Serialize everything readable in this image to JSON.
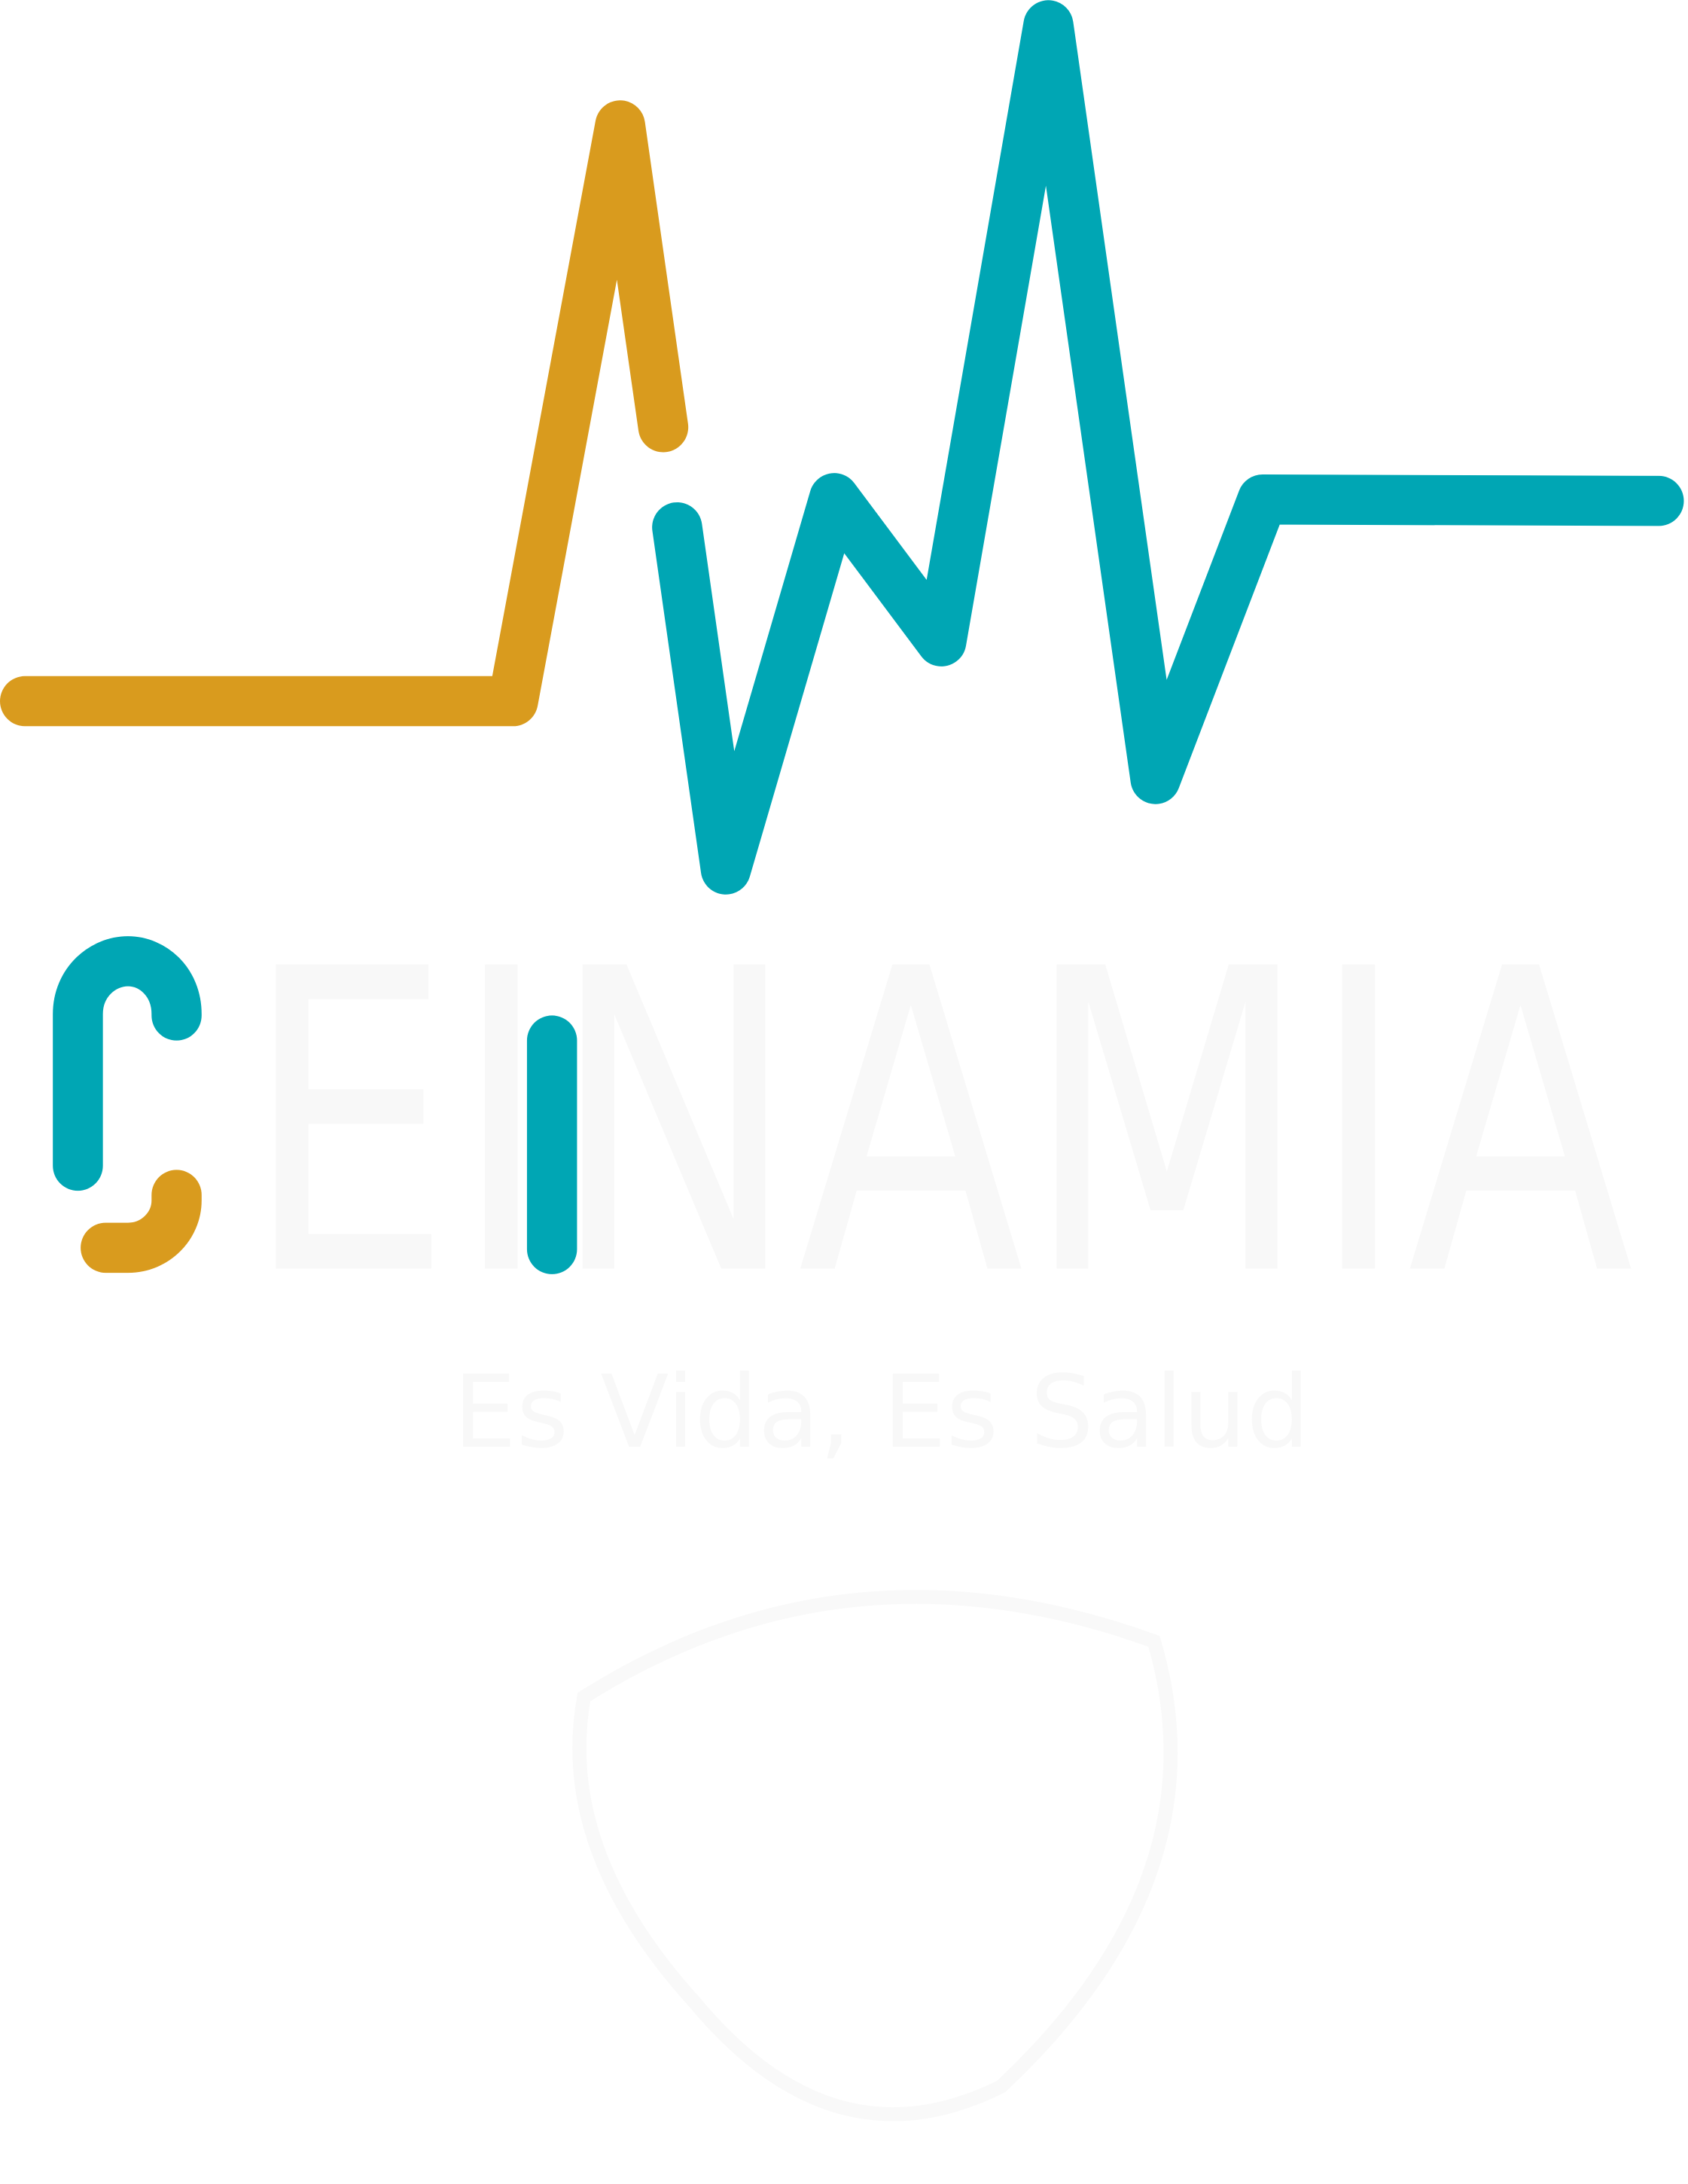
{
  "logo": {
    "wordmark": "EINAMIA",
    "tagline": "Es Vida, Es Salud"
  }
}
